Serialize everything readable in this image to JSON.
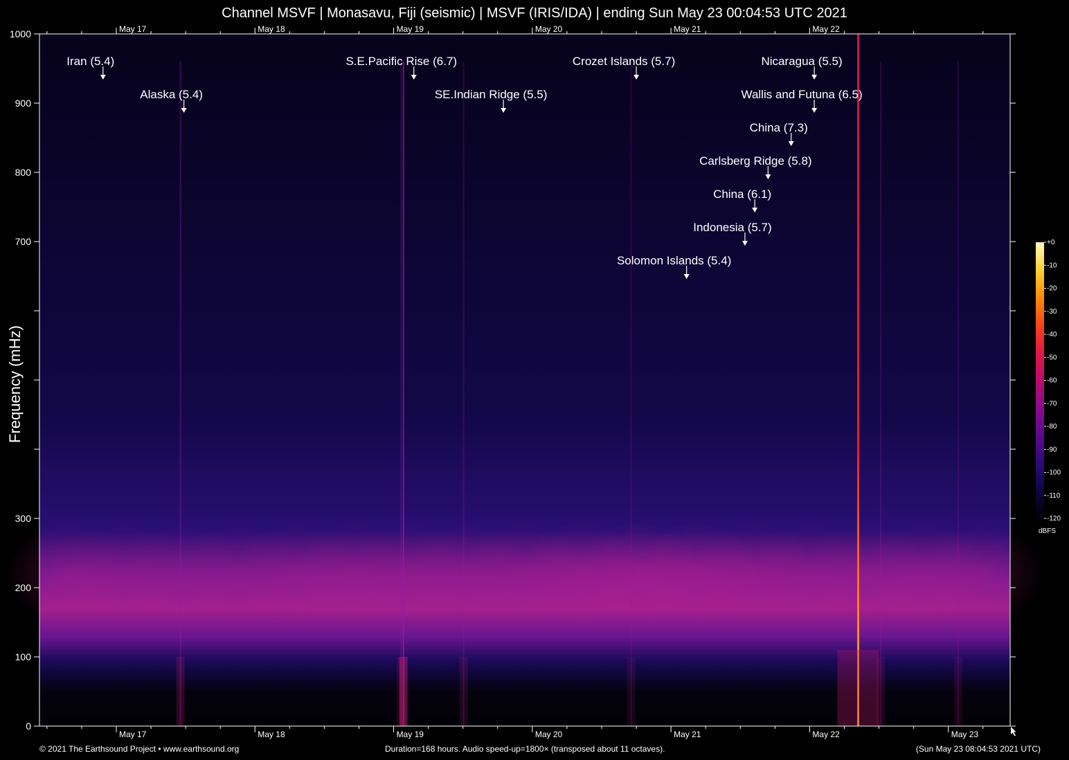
{
  "title": "Channel MSVF | Monasavu, Fiji (seismic) | MSVF (IRIS/IDA) | ending Sun May 23 00:04:53 UTC 2021",
  "footer": {
    "left": "© 2021 The Earthsound Project • www.earthsound.org",
    "center": "Duration=168 hours. Audio speed-up=1800× (transposed about 11 octaves).",
    "right": "(Sun May 23 08:04:53 2021 UTC)"
  },
  "colors": {
    "background": "#000000",
    "text": "#ffffff",
    "spectrogram_base": "#0a0420",
    "spectrogram_band": "#c0208c",
    "quake_line_strong": "#ff7a1a"
  },
  "chart_data": {
    "type": "heatmap",
    "subtype": "spectrogram",
    "title": "Channel MSVF | Monasavu, Fiji (seismic) | MSVF (IRIS/IDA) | ending Sun May 23 00:04:53 UTC 2021",
    "xlabel": "",
    "ylabel": "Frequency (mHz)",
    "x_unit": "hours",
    "xlim": [
      0,
      168
    ],
    "ylim": [
      0,
      1000
    ],
    "x_ticks": [
      {
        "label": "May 17",
        "x": 13.3
      },
      {
        "label": "May 18",
        "x": 37.3
      },
      {
        "label": "May 19",
        "x": 61.3
      },
      {
        "label": "May 20",
        "x": 85.3
      },
      {
        "label": "May 21",
        "x": 109.3
      },
      {
        "label": "May 22",
        "x": 133.3
      },
      {
        "label": "May 23",
        "x": 157.3
      }
    ],
    "top_x_ticks": [
      "May 17",
      "May 18",
      "May 19",
      "May 20",
      "May 21",
      "May 22"
    ],
    "y_ticks": [
      {
        "label": "0",
        "value": 0
      },
      {
        "label": "100",
        "value": 100
      },
      {
        "label": "200",
        "value": 200
      },
      {
        "label": "300",
        "value": 300
      },
      {
        "label": "",
        "value": 400
      },
      {
        "label": "",
        "value": 500
      },
      {
        "label": "",
        "value": 600
      },
      {
        "label": "700",
        "value": 700
      },
      {
        "label": "800",
        "value": 800
      },
      {
        "label": "900",
        "value": 900
      },
      {
        "label": "1000",
        "value": 1000
      }
    ],
    "colorbar": {
      "unit": "dBFS",
      "range": [
        -120,
        0
      ],
      "ticks": [
        "+0",
        "-10",
        "-20",
        "-30",
        "-40",
        "-50",
        "-60",
        "-70",
        "-80",
        "-90",
        "-100",
        "-110",
        "-120"
      ],
      "stops": [
        "#000008",
        "#0c0640",
        "#2c0a78",
        "#5a0a90",
        "#8a0c8c",
        "#b80c6a",
        "#e01848",
        "#f84418",
        "#ff8c0a",
        "#ffd030",
        "#fff8c0"
      ]
    },
    "band_center_mhz": 220,
    "band_intensity": [
      0.5,
      0.45,
      0.4,
      0.4,
      0.5,
      0.6,
      0.55,
      0.55,
      0.6,
      0.7,
      0.8,
      0.75,
      0.65,
      0.55,
      0.5,
      0.55,
      0.45
    ],
    "events": [
      {
        "label": "Iran (5.4)",
        "x": 11.0
      },
      {
        "label": "Alaska (5.4)",
        "x": 25.0
      },
      {
        "label": "S.E.Pacific Rise (6.7)",
        "x": 64.8
      },
      {
        "label": "SE.Indian Ridge (5.5)",
        "x": 80.3
      },
      {
        "label": "Crozet Islands (5.7)",
        "x": 103.3
      },
      {
        "label": "Solomon Islands (5.4)",
        "x": 112.0
      },
      {
        "label": "Indonesia (5.7)",
        "x": 122.1
      },
      {
        "label": "China (6.1)",
        "x": 123.8
      },
      {
        "label": "Carlsberg Ridge (5.8)",
        "x": 126.1
      },
      {
        "label": "China (7.3)",
        "x": 130.1
      },
      {
        "label": "Wallis and Futuna (6.5)",
        "x": 134.1
      },
      {
        "label": "Nicaragua (5.5)",
        "x": 134.1
      }
    ],
    "event_lines": [
      {
        "x": 24.4,
        "strength": 0.35
      },
      {
        "x": 62.6,
        "strength": 0.3
      },
      {
        "x": 63.0,
        "strength": 0.75
      },
      {
        "x": 73.4,
        "strength": 0.25
      },
      {
        "x": 102.4,
        "strength": 0.2
      },
      {
        "x": 141.7,
        "strength": 1.0
      },
      {
        "x": 145.6,
        "strength": 0.25
      },
      {
        "x": 159.0,
        "strength": 0.2
      }
    ]
  }
}
